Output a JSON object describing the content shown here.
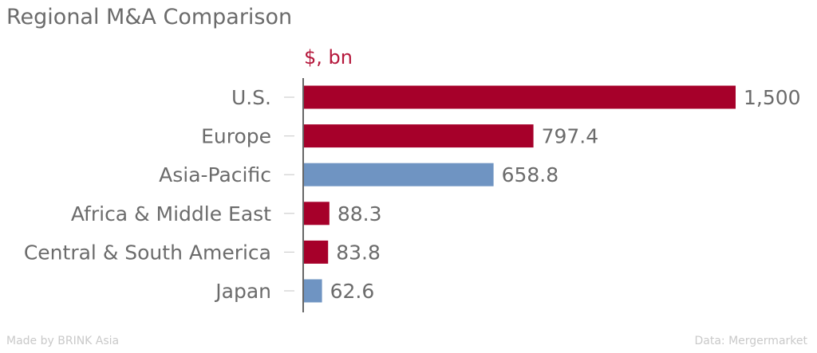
{
  "chart_data": {
    "type": "bar",
    "orientation": "horizontal",
    "title": "Regional M&A Comparison",
    "unit_label": "$, bn",
    "categories": [
      "U.S.",
      "Europe",
      "Asia-Pacific",
      "Africa & Middle East",
      "Central & South America",
      "Japan"
    ],
    "values": [
      1500,
      797.4,
      658.8,
      88.3,
      83.8,
      62.6
    ],
    "value_labels": [
      "1,500",
      "797.4",
      "658.8",
      "88.3",
      "83.8",
      "62.6"
    ],
    "bar_colors": [
      "#a6002a",
      "#a6002a",
      "#6f94c2",
      "#a6002a",
      "#a6002a",
      "#6f94c2"
    ],
    "xlim": [
      0,
      1500
    ],
    "grid": false,
    "xlabel": "",
    "ylabel": ""
  },
  "footer": {
    "credit": "Made by BRINK Asia",
    "source": "Data: Mergermarket"
  }
}
